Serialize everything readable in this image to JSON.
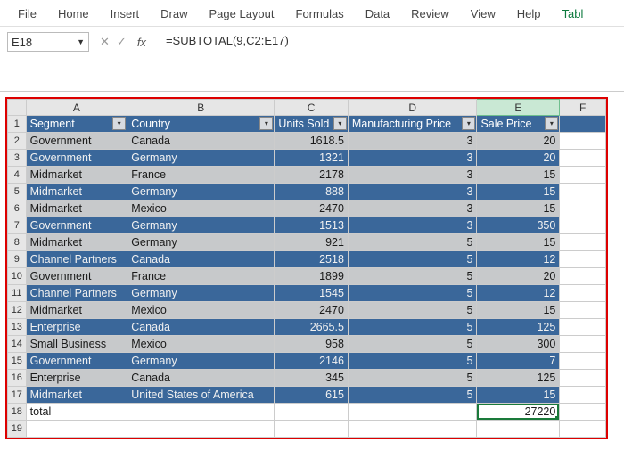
{
  "ribbon": {
    "tabs": [
      "File",
      "Home",
      "Insert",
      "Draw",
      "Page Layout",
      "Formulas",
      "Data",
      "Review",
      "View",
      "Help",
      "Tabl"
    ]
  },
  "namebox": {
    "value": "E18"
  },
  "fx": {
    "cancel": "✕",
    "confirm": "✓",
    "label": "fx"
  },
  "formula": {
    "value": "=SUBTOTAL(9,C2:E17)"
  },
  "columns": [
    "A",
    "B",
    "C",
    "D",
    "E",
    "F"
  ],
  "col_widths": {
    "A": 110,
    "B": 160,
    "C": 80,
    "D": 140,
    "E": 90,
    "F": 50
  },
  "selected_col": "E",
  "headers": [
    "Segment",
    "Country",
    "Units Sold",
    "Manufacturing Price",
    "Sale Price"
  ],
  "rows": [
    {
      "r": 2,
      "seg": "Government",
      "cty": "Canada",
      "units": "1618.5",
      "mfg": "3",
      "price": "20",
      "band": "grey"
    },
    {
      "r": 3,
      "seg": "Government",
      "cty": "Germany",
      "units": "1321",
      "mfg": "3",
      "price": "20",
      "band": "blue"
    },
    {
      "r": 4,
      "seg": "Midmarket",
      "cty": "France",
      "units": "2178",
      "mfg": "3",
      "price": "15",
      "band": "grey"
    },
    {
      "r": 5,
      "seg": "Midmarket",
      "cty": "Germany",
      "units": "888",
      "mfg": "3",
      "price": "15",
      "band": "blue"
    },
    {
      "r": 6,
      "seg": "Midmarket",
      "cty": "Mexico",
      "units": "2470",
      "mfg": "3",
      "price": "15",
      "band": "grey"
    },
    {
      "r": 7,
      "seg": "Government",
      "cty": "Germany",
      "units": "1513",
      "mfg": "3",
      "price": "350",
      "band": "blue"
    },
    {
      "r": 8,
      "seg": "Midmarket",
      "cty": "Germany",
      "units": "921",
      "mfg": "5",
      "price": "15",
      "band": "grey"
    },
    {
      "r": 9,
      "seg": "Channel Partners",
      "cty": "Canada",
      "units": "2518",
      "mfg": "5",
      "price": "12",
      "band": "blue"
    },
    {
      "r": 10,
      "seg": "Government",
      "cty": "France",
      "units": "1899",
      "mfg": "5",
      "price": "20",
      "band": "grey"
    },
    {
      "r": 11,
      "seg": "Channel Partners",
      "cty": "Germany",
      "units": "1545",
      "mfg": "5",
      "price": "12",
      "band": "blue"
    },
    {
      "r": 12,
      "seg": "Midmarket",
      "cty": "Mexico",
      "units": "2470",
      "mfg": "5",
      "price": "15",
      "band": "grey"
    },
    {
      "r": 13,
      "seg": "Enterprise",
      "cty": "Canada",
      "units": "2665.5",
      "mfg": "5",
      "price": "125",
      "band": "blue"
    },
    {
      "r": 14,
      "seg": "Small Business",
      "cty": "Mexico",
      "units": "958",
      "mfg": "5",
      "price": "300",
      "band": "grey"
    },
    {
      "r": 15,
      "seg": "Government",
      "cty": "Germany",
      "units": "2146",
      "mfg": "5",
      "price": "7",
      "band": "blue"
    },
    {
      "r": 16,
      "seg": "Enterprise",
      "cty": "Canada",
      "units": "345",
      "mfg": "5",
      "price": "125",
      "band": "grey"
    },
    {
      "r": 17,
      "seg": "Midmarket",
      "cty": "United States of America",
      "units": "615",
      "mfg": "5",
      "price": "15",
      "band": "blue"
    }
  ],
  "total": {
    "r": 18,
    "label": "total",
    "value": "27220"
  },
  "extra_rows": [
    19
  ],
  "selected_cell": {
    "row": 18,
    "col": "E"
  },
  "colors": {
    "header_bg": "#3a679a",
    "band_blue": "#3a679a",
    "band_grey": "#c7c9cb",
    "sel_border": "#1a7a3a",
    "red_box": "#d00"
  }
}
